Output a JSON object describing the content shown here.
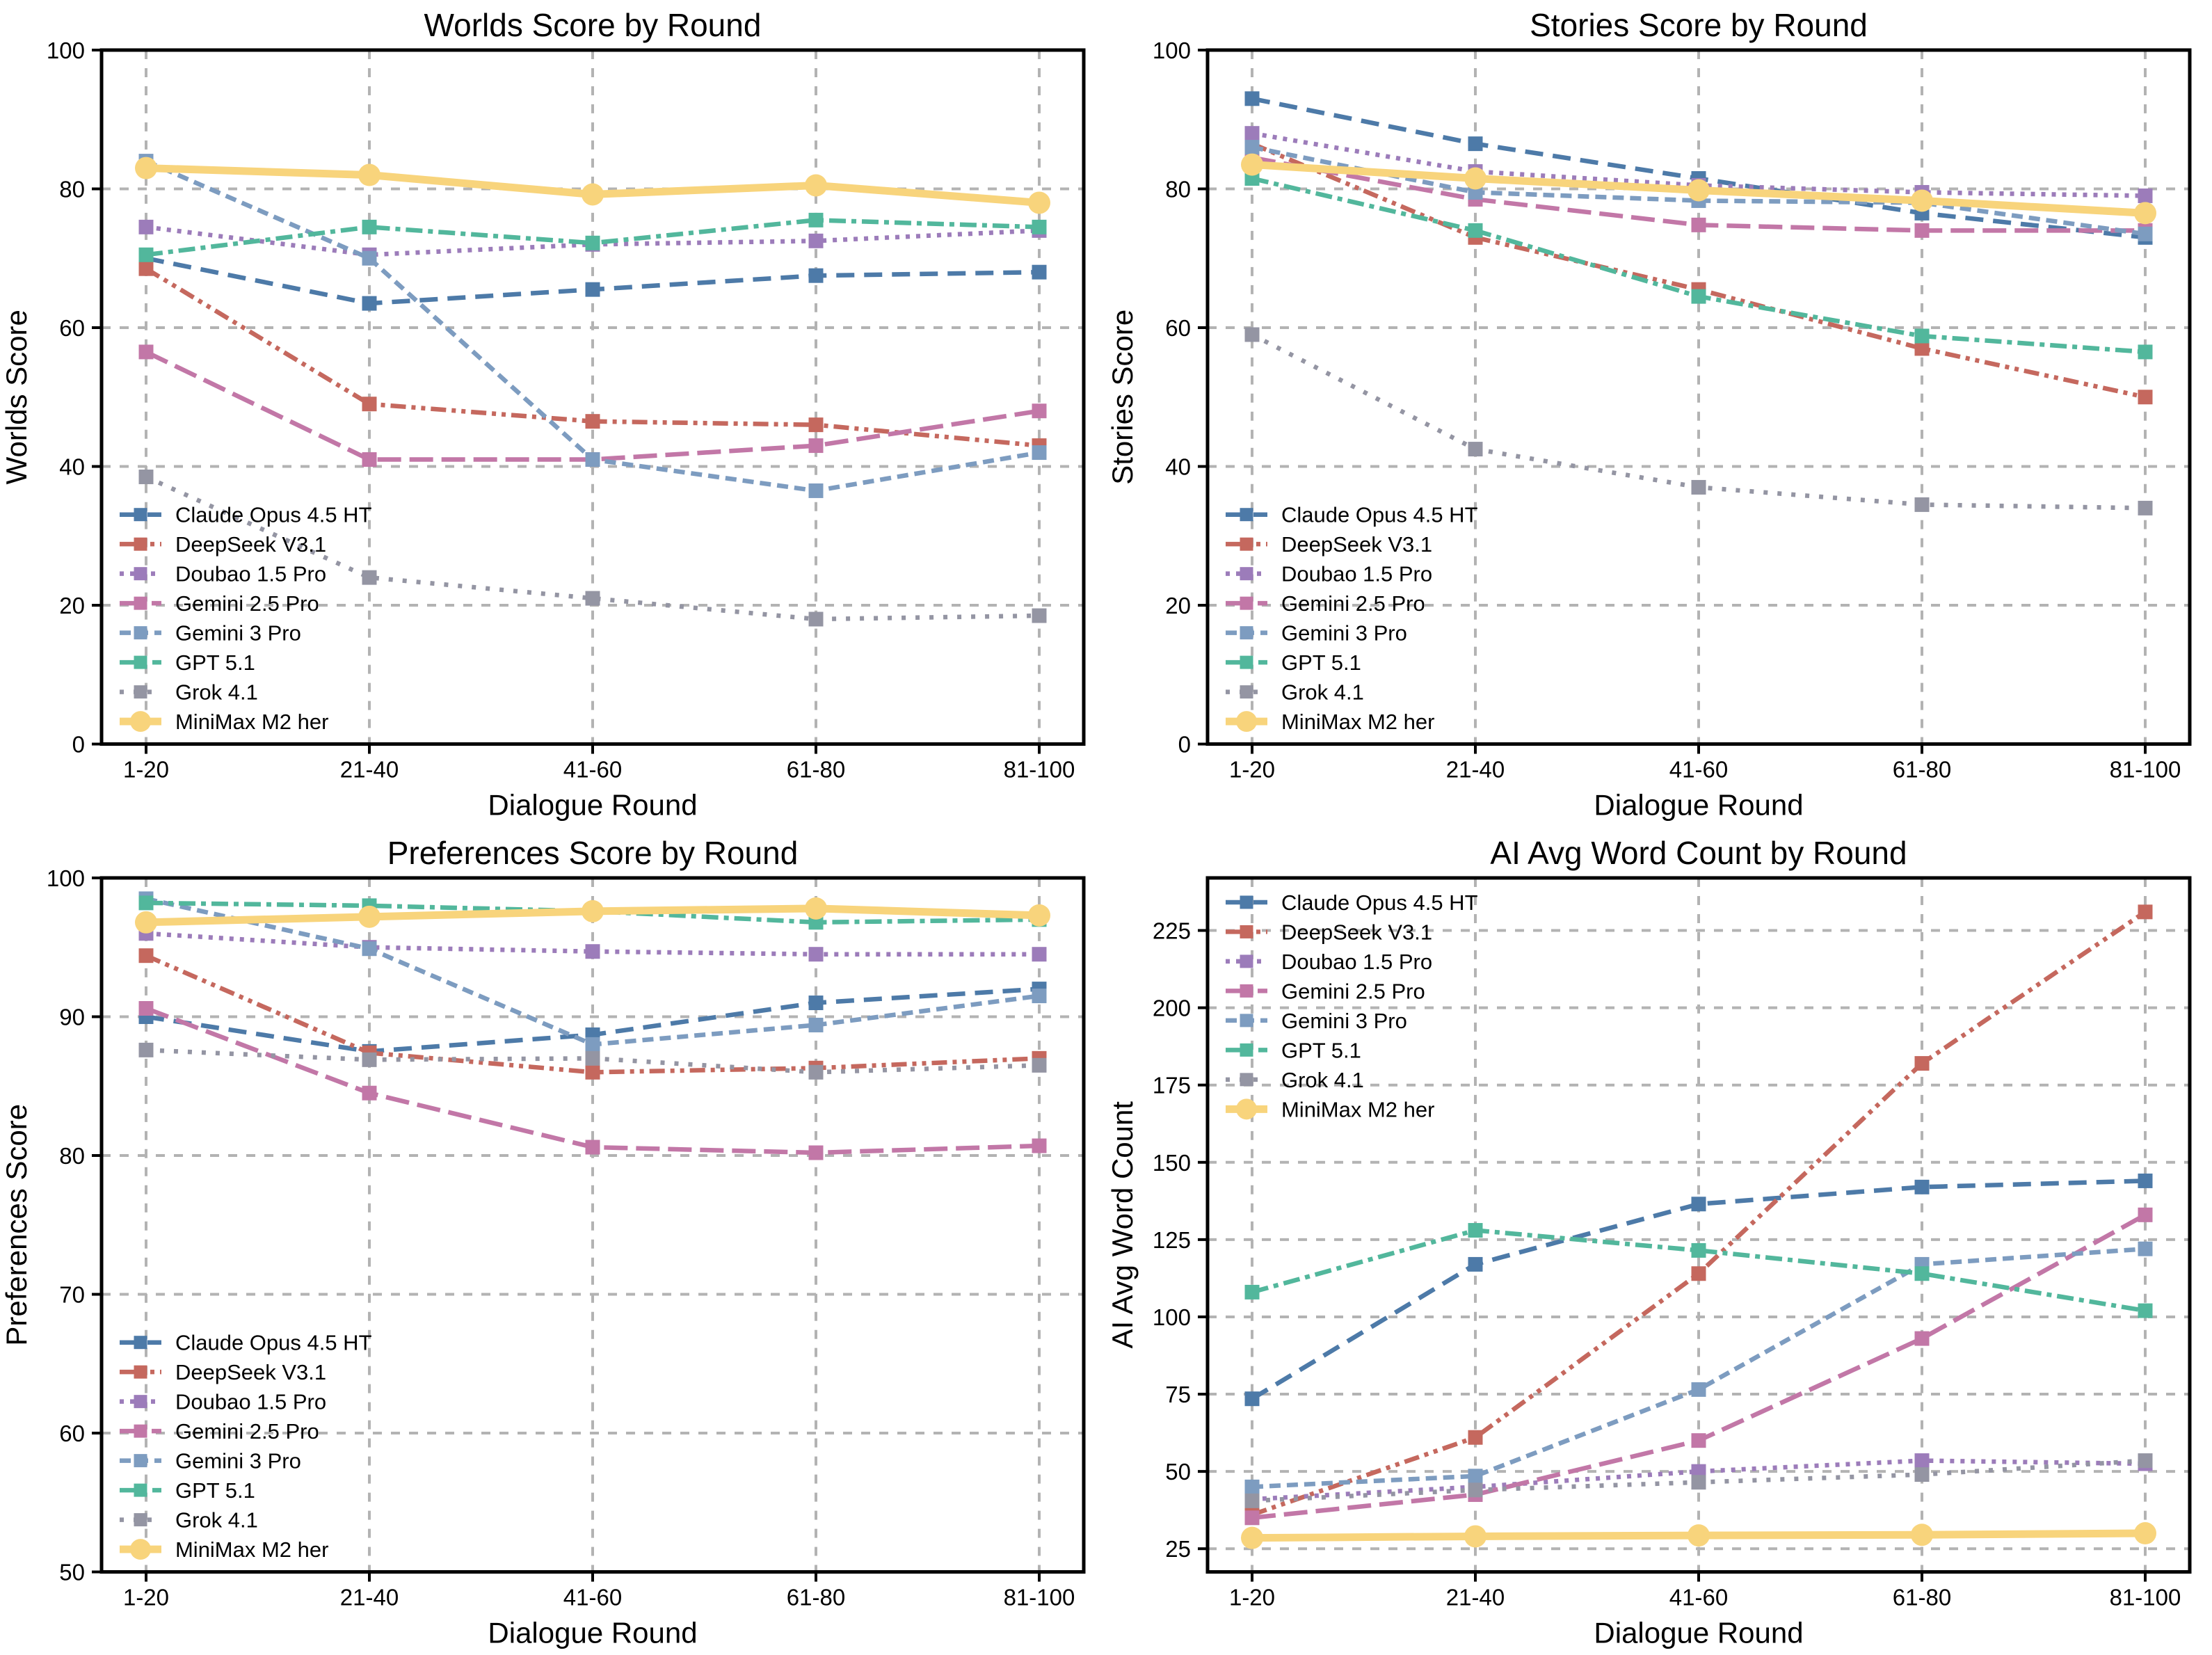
{
  "page": {
    "background": "#ffffff",
    "grid_color": "#b3b3b3",
    "spine_color": "#000000"
  },
  "categories": [
    "1-20",
    "21-40",
    "41-60",
    "61-80",
    "81-100"
  ],
  "x_axis_label": "Dialogue Round",
  "series_styles": [
    {
      "id": "claude-opus-4-5-ht",
      "label": "Claude Opus 4.5 HT",
      "color": "#4d7aa8",
      "dash": "26 14",
      "marker": "square",
      "line_width": 6.5
    },
    {
      "id": "deepseek-v3-1",
      "label": "DeepSeek V3.1",
      "color": "#c5685e",
      "dash": "22 8 6 8 6 8",
      "marker": "square",
      "line_width": 6.5
    },
    {
      "id": "doubao-1-5-pro",
      "label": "Doubao 1.5 Pro",
      "color": "#9c7cba",
      "dash": "6 9",
      "marker": "square",
      "line_width": 6.5
    },
    {
      "id": "gemini-2-5-pro",
      "label": "Gemini 2.5 Pro",
      "color": "#c277a7",
      "dash": "34 12",
      "marker": "square",
      "line_width": 6.5
    },
    {
      "id": "gemini-3-pro",
      "label": "Gemini 3 Pro",
      "color": "#7d9cc0",
      "dash": "16 9",
      "marker": "square",
      "line_width": 6.5
    },
    {
      "id": "gpt-5-1",
      "label": "GPT 5.1",
      "color": "#52b79c",
      "dash": "24 8 7 8",
      "marker": "square",
      "line_width": 6.5
    },
    {
      "id": "grok-4-1",
      "label": "Grok 4.1",
      "color": "#9495a3",
      "dash": "6 14",
      "marker": "square",
      "line_width": 6.5
    },
    {
      "id": "minimax-m2-her",
      "label": "MiniMax M2 her",
      "color": "#f8d47c",
      "dash": "",
      "marker": "circle",
      "line_width": 11
    }
  ],
  "chart_data": [
    {
      "type": "line",
      "title": "Worlds Score by Round",
      "xlabel": "Dialogue Round",
      "ylabel": "Worlds Score",
      "categories": [
        "1-20",
        "21-40",
        "41-60",
        "61-80",
        "81-100"
      ],
      "ylim": [
        0,
        100
      ],
      "yticks": [
        0,
        20,
        40,
        60,
        80,
        100
      ],
      "grid": true,
      "legend_position": "lower-left",
      "series": [
        {
          "name": "Claude Opus 4.5 HT",
          "values": [
            70,
            63.5,
            65.5,
            67.5,
            68
          ]
        },
        {
          "name": "DeepSeek V3.1",
          "values": [
            68.5,
            49,
            46.5,
            46,
            43
          ]
        },
        {
          "name": "Doubao 1.5 Pro",
          "values": [
            74.5,
            70.5,
            72,
            72.5,
            74
          ]
        },
        {
          "name": "Gemini 2.5 Pro",
          "values": [
            56.5,
            41,
            41,
            43,
            48
          ]
        },
        {
          "name": "Gemini 3 Pro",
          "values": [
            84,
            70,
            41,
            36.5,
            42
          ]
        },
        {
          "name": "GPT 5.1",
          "values": [
            70.5,
            74.5,
            72.2,
            75.5,
            74.5
          ]
        },
        {
          "name": "Grok 4.1",
          "values": [
            38.5,
            24,
            21,
            18,
            18.5
          ]
        },
        {
          "name": "MiniMax M2 her",
          "values": [
            83,
            82,
            79.2,
            80.5,
            78
          ]
        }
      ]
    },
    {
      "type": "line",
      "title": "Stories Score by Round",
      "xlabel": "Dialogue Round",
      "ylabel": "Stories Score",
      "categories": [
        "1-20",
        "21-40",
        "41-60",
        "61-80",
        "81-100"
      ],
      "ylim": [
        0,
        100
      ],
      "yticks": [
        0,
        20,
        40,
        60,
        80,
        100
      ],
      "grid": true,
      "legend_position": "lower-left",
      "series": [
        {
          "name": "Claude Opus 4.5 HT",
          "values": [
            93,
            86.5,
            81.5,
            76.5,
            73
          ]
        },
        {
          "name": "DeepSeek V3.1",
          "values": [
            86.5,
            73,
            65.5,
            57,
            50
          ]
        },
        {
          "name": "Doubao 1.5 Pro",
          "values": [
            88,
            82.5,
            80.5,
            79.5,
            79
          ]
        },
        {
          "name": "Gemini 2.5 Pro",
          "values": [
            84.5,
            78.5,
            74.8,
            74,
            74
          ]
        },
        {
          "name": "Gemini 3 Pro",
          "values": [
            86,
            79.5,
            78.3,
            78,
            73.5
          ]
        },
        {
          "name": "GPT 5.1",
          "values": [
            81.5,
            74,
            64.5,
            58.8,
            56.5
          ]
        },
        {
          "name": "Grok 4.1",
          "values": [
            59,
            42.5,
            37,
            34.5,
            34
          ]
        },
        {
          "name": "MiniMax M2 her",
          "values": [
            83.5,
            81.5,
            79.8,
            78.3,
            76.5
          ]
        }
      ]
    },
    {
      "type": "line",
      "title": "Preferences Score by Round",
      "xlabel": "Dialogue Round",
      "ylabel": "Preferences Score",
      "categories": [
        "1-20",
        "21-40",
        "41-60",
        "61-80",
        "81-100"
      ],
      "ylim": [
        50,
        100
      ],
      "yticks": [
        50,
        60,
        70,
        80,
        90,
        100
      ],
      "grid": true,
      "legend_position": "lower-left",
      "series": [
        {
          "name": "Claude Opus 4.5 HT",
          "values": [
            90,
            87.5,
            88.7,
            91,
            92
          ]
        },
        {
          "name": "DeepSeek V3.1",
          "values": [
            94.4,
            87.4,
            86,
            86.3,
            87
          ]
        },
        {
          "name": "Doubao 1.5 Pro",
          "values": [
            96,
            95,
            94.7,
            94.5,
            94.5
          ]
        },
        {
          "name": "Gemini 2.5 Pro",
          "values": [
            90.6,
            84.5,
            80.6,
            80.2,
            80.7
          ]
        },
        {
          "name": "Gemini 3 Pro",
          "values": [
            98.5,
            94.9,
            88,
            89.4,
            91.5
          ]
        },
        {
          "name": "GPT 5.1",
          "values": [
            98.2,
            98,
            97.6,
            96.8,
            97
          ]
        },
        {
          "name": "Grok 4.1",
          "values": [
            87.6,
            86.9,
            87,
            86,
            86.5
          ]
        },
        {
          "name": "MiniMax M2 her",
          "values": [
            96.8,
            97.2,
            97.6,
            97.8,
            97.3
          ]
        }
      ]
    },
    {
      "type": "line",
      "title": "AI Avg Word Count by Round",
      "xlabel": "Dialogue Round",
      "ylabel": "AI Avg Word Count",
      "categories": [
        "1-20",
        "21-40",
        "41-60",
        "61-80",
        "81-100"
      ],
      "ylim": [
        17.5,
        242
      ],
      "yticks": [
        25,
        50,
        75,
        100,
        125,
        150,
        175,
        200,
        225
      ],
      "grid": true,
      "legend_position": "upper-left",
      "series": [
        {
          "name": "Claude Opus 4.5 HT",
          "values": [
            73.5,
            117,
            136.5,
            142,
            144
          ]
        },
        {
          "name": "DeepSeek V3.1",
          "values": [
            36,
            61,
            114,
            182,
            231
          ]
        },
        {
          "name": "Doubao 1.5 Pro",
          "values": [
            41,
            45,
            50,
            53.5,
            52.5
          ]
        },
        {
          "name": "Gemini 2.5 Pro",
          "values": [
            35,
            42.5,
            60,
            93,
            133
          ]
        },
        {
          "name": "Gemini 3 Pro",
          "values": [
            45,
            48.5,
            76.5,
            117,
            122
          ]
        },
        {
          "name": "GPT 5.1",
          "values": [
            108,
            128,
            121.5,
            114,
            102
          ]
        },
        {
          "name": "Grok 4.1",
          "values": [
            40.5,
            44,
            46.5,
            49,
            53.5
          ]
        },
        {
          "name": "MiniMax M2 her",
          "values": [
            28.5,
            29,
            29.3,
            29.5,
            30
          ]
        }
      ]
    }
  ]
}
